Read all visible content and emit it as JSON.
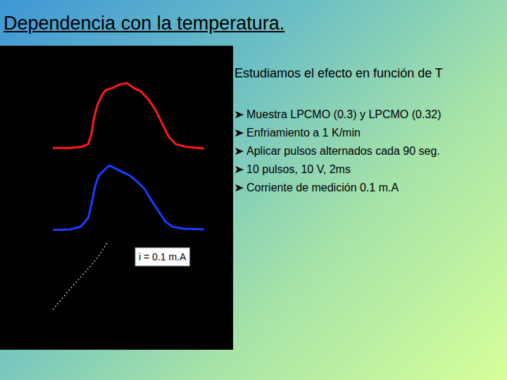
{
  "title": "Dependencia con la temperatura.",
  "intro": "Estudiamos el efecto en función de T",
  "bullets": [
    "Muestra LPCMO (0.3) y LPCMO (0.32)",
    "Enfriamiento a 1 K/min",
    "Aplicar pulsos alternados cada 90 seg.",
    "10 pulsos, 10 V, 2ms",
    "Corriente de medición 0.1 m.A"
  ],
  "chart_data": {
    "type": "line",
    "tick_labels": false,
    "grid": false,
    "xlim": [
      0,
      100
    ],
    "ylim": [
      0,
      100
    ],
    "annotations": [
      "i = 0.1 m.A"
    ],
    "series": [
      {
        "color": "#ff1a1a",
        "x": [
          22.7,
          30.2,
          34.7,
          37.8,
          39.3,
          40.2,
          41.7,
          43.8,
          45.3,
          48.3,
          51.4,
          54.4,
          57.4,
          60.4,
          63.4,
          66.5,
          69.5,
          72.5,
          75.5,
          80.1,
          87.6
        ],
        "values": [
          66.4,
          66.4,
          66.7,
          67.6,
          71.1,
          75.7,
          80.3,
          83.8,
          85.4,
          86.1,
          87.3,
          87.7,
          86.1,
          85.0,
          82.6,
          79.2,
          74.5,
          69.9,
          67.6,
          66.7,
          66.2
        ]
      },
      {
        "color": "#1a3cff",
        "x": [
          22.7,
          30.2,
          34.7,
          37.8,
          39.3,
          40.8,
          42.3,
          45.3,
          46.8,
          49.8,
          52.9,
          55.9,
          58.9,
          61.9,
          65.0,
          68.0,
          71.0,
          74.0,
          78.5,
          87.6
        ],
        "values": [
          39.4,
          39.6,
          40.5,
          43.3,
          47.9,
          53.7,
          57.2,
          59.5,
          60.6,
          59.5,
          58.3,
          57.2,
          55.3,
          53.0,
          49.1,
          45.6,
          42.1,
          40.5,
          39.8,
          39.6
        ]
      },
      {
        "color": "#bbbbbb",
        "line_style": "dotted",
        "x": [
          22.7,
          30.2,
          37.8,
          42.3,
          45.9
        ],
        "values": [
          13.2,
          20.1,
          26.6,
          30.6,
          35.2
        ]
      }
    ]
  }
}
